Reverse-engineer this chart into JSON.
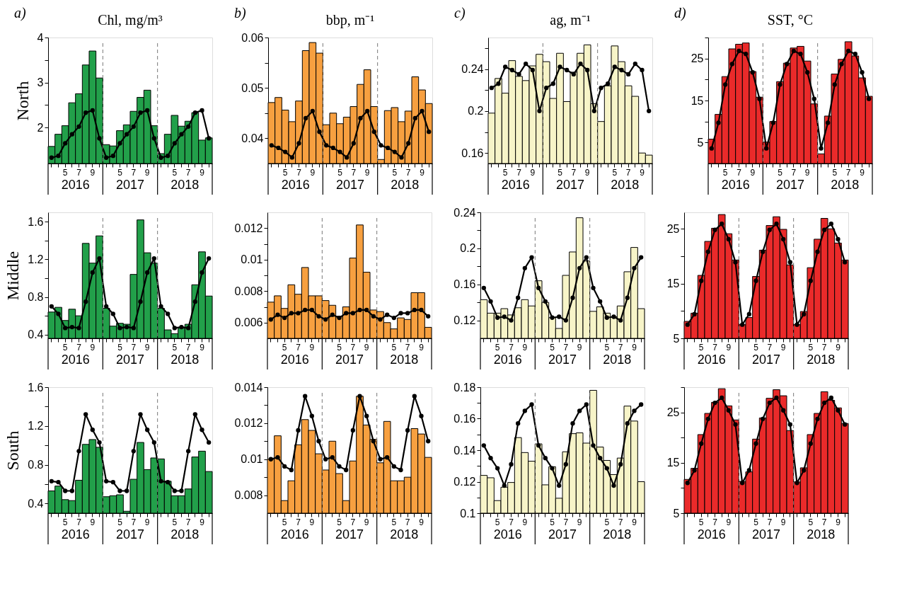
{
  "chart_data": [
    {
      "type": "bar",
      "title": "Chl, mg/m³",
      "subtitle": "a)",
      "ylabel": "North",
      "categories": [
        null,
        null,
        "5",
        null,
        "7",
        null,
        "9",
        null,
        null,
        null,
        "5",
        null,
        "7",
        null,
        "9",
        null,
        null,
        null,
        "5",
        null,
        "7",
        null,
        "9",
        null
      ],
      "ylim": [
        1.2,
        4
      ],
      "yticks": [
        2,
        {
          "value": 2.5,
          "label": null
        },
        3,
        {
          "value": 3.5,
          "label": null
        },
        4
      ],
      "annotations": [
        "2016",
        "2017",
        "2018"
      ],
      "series": [
        {
          "type": "bar",
          "color": "#22a04a",
          "values": [
            1.58,
            1.85,
            2.04,
            2.55,
            2.75,
            3.39,
            3.7,
            3.1,
            1.62,
            1.59,
            1.93,
            2.06,
            2.36,
            2.67,
            2.83,
            2.04,
            1.42,
            1.85,
            2.27,
            2.03,
            2.14,
            2.33,
            1.72,
            1.77
          ]
        },
        {
          "type": "line",
          "color": "#000000",
          "marker": "circle",
          "line_style": "solid",
          "values": [
            1.33,
            1.37,
            1.65,
            1.85,
            2.02,
            2.33,
            2.38,
            1.76,
            1.33,
            1.37,
            1.65,
            1.85,
            2.02,
            2.33,
            2.38,
            1.76,
            1.33,
            1.37,
            1.65,
            1.85,
            2.02,
            2.33,
            2.38,
            1.76
          ]
        }
      ]
    },
    {
      "type": "bar",
      "title": "bbp, m⁻¹",
      "subtitle": "b)",
      "categories": [
        null,
        null,
        "5",
        null,
        "7",
        null,
        "9",
        null,
        null,
        null,
        "5",
        null,
        "7",
        null,
        "9",
        null,
        null,
        null,
        "5",
        null,
        "7",
        null,
        "9",
        null
      ],
      "ylim": [
        0.035,
        0.06
      ],
      "yticks": [
        0.04,
        {
          "value": 0.045,
          "label": null
        },
        0.05,
        {
          "value": 0.055,
          "label": null
        },
        0.06
      ],
      "annotations": [
        "2016",
        "2017",
        "2018"
      ],
      "series": [
        {
          "type": "bar",
          "color": "#f7a040",
          "values": [
            0.0471,
            0.0481,
            0.0456,
            0.0433,
            0.0474,
            0.0574,
            0.059,
            0.0569,
            0.0427,
            0.045,
            0.0429,
            0.0442,
            0.0463,
            0.0507,
            0.0536,
            0.0463,
            0.0358,
            0.0455,
            0.0461,
            0.0433,
            0.0454,
            0.0522,
            0.0496,
            0.0469
          ]
        },
        {
          "type": "line",
          "color": "#000000",
          "marker": "circle",
          "line_style": "solid",
          "values": [
            0.0386,
            0.0381,
            0.0373,
            0.0362,
            0.039,
            0.044,
            0.0454,
            0.0413,
            0.0386,
            0.0381,
            0.0373,
            0.0362,
            0.039,
            0.044,
            0.0454,
            0.0413,
            0.0386,
            0.0381,
            0.0373,
            0.0362,
            0.039,
            0.044,
            0.0454,
            0.0413
          ]
        }
      ]
    },
    {
      "type": "bar",
      "title": "ag, m⁻¹",
      "subtitle": "c)",
      "categories": [
        null,
        null,
        "5",
        null,
        "7",
        null,
        "9",
        null,
        null,
        null,
        "5",
        null,
        "7",
        null,
        "9",
        null,
        null,
        null,
        "5",
        null,
        "7",
        null,
        "9",
        null
      ],
      "ylim": [
        0.15,
        0.27
      ],
      "yticks": [
        0.16,
        {
          "value": 0.18,
          "label": null
        },
        0.2,
        {
          "value": 0.22,
          "label": null
        },
        0.24,
        {
          "value": 0.26,
          "label": null
        }
      ],
      "annotations": [
        "2016",
        "2017",
        "2018"
      ],
      "series": [
        {
          "type": "bar",
          "color": "#f7f4c8",
          "values": [
            0.198,
            0.231,
            0.217,
            0.248,
            0.233,
            0.229,
            0.243,
            0.254,
            0.247,
            0.212,
            0.255,
            0.209,
            0.237,
            0.255,
            0.263,
            0.207,
            0.19,
            0.224,
            0.262,
            0.247,
            0.224,
            0.214,
            0.16,
            0.158
          ]
        },
        {
          "type": "line",
          "color": "#000000",
          "marker": "circle",
          "line_style": "solid",
          "values": [
            0.222,
            0.226,
            0.242,
            0.239,
            0.235,
            0.245,
            0.239,
            0.2,
            0.222,
            0.226,
            0.242,
            0.239,
            0.235,
            0.245,
            0.239,
            0.2,
            0.222,
            0.226,
            0.242,
            0.239,
            0.235,
            0.245,
            0.239,
            0.2
          ]
        }
      ]
    },
    {
      "type": "bar",
      "title": "SST, °C",
      "subtitle": "d)",
      "categories": [
        null,
        null,
        "5",
        null,
        "7",
        null,
        "9",
        null,
        null,
        null,
        "5",
        null,
        "7",
        null,
        "9",
        null,
        null,
        null,
        "5",
        null,
        "7",
        null,
        "9",
        null
      ],
      "ylim": [
        0,
        30
      ],
      "yticks": [
        5,
        {
          "value": 10,
          "label": null
        },
        15,
        {
          "value": 20,
          "label": null
        },
        25,
        {
          "value": 30,
          "label": null
        }
      ],
      "annotations": [
        "2016",
        "2017",
        "2018"
      ],
      "series": [
        {
          "type": "bar",
          "color": "#ea2a2a",
          "values": [
            5.8,
            11.7,
            20.7,
            27.3,
            28.4,
            28.7,
            21.9,
            15.8,
            5.1,
            10.0,
            19.5,
            23.9,
            27.5,
            27.9,
            24.4,
            14.2,
            2.3,
            11.3,
            21.3,
            24.8,
            29.0,
            25.6,
            20.4,
            16.0
          ]
        },
        {
          "type": "line",
          "color": "#000000",
          "marker": "circle",
          "line_style": "solid",
          "values": [
            3.6,
            9.7,
            18.8,
            23.7,
            26.8,
            26.1,
            21.7,
            15.4,
            3.6,
            9.7,
            18.8,
            23.7,
            26.8,
            26.1,
            21.7,
            15.4,
            3.6,
            9.7,
            18.8,
            23.7,
            26.8,
            26.1,
            21.7,
            15.4
          ]
        }
      ]
    },
    {
      "type": "bar",
      "ylabel": "Middle",
      "categories": [
        null,
        null,
        "5",
        null,
        "7",
        null,
        "9",
        null,
        null,
        null,
        "5",
        null,
        "7",
        null,
        "9",
        null,
        null,
        null,
        "5",
        null,
        "7",
        null,
        "9",
        null
      ],
      "ylim": [
        0.36,
        1.7
      ],
      "yticks": [
        0.4,
        {
          "value": 0.6,
          "label": null
        },
        0.8,
        {
          "value": 1.0,
          "label": null
        },
        1.2,
        {
          "value": 1.4,
          "label": null
        },
        1.6
      ],
      "annotations": [
        "2016",
        "2017",
        "2018"
      ],
      "series": [
        {
          "type": "bar",
          "color": "#22a04a",
          "values": [
            0.64,
            0.69,
            0.55,
            0.67,
            0.6,
            1.37,
            1.16,
            1.45,
            0.68,
            0.49,
            0.52,
            0.51,
            1.04,
            1.62,
            1.27,
            1.16,
            0.68,
            0.45,
            0.41,
            0.47,
            0.51,
            0.93,
            1.28,
            0.81
          ]
        },
        {
          "type": "line",
          "color": "#000000",
          "marker": "circle",
          "line_style": "solid",
          "values": [
            0.7,
            0.62,
            0.47,
            0.48,
            0.47,
            0.75,
            1.06,
            1.21,
            0.7,
            0.62,
            0.47,
            0.48,
            0.47,
            0.75,
            1.06,
            1.21,
            0.7,
            0.62,
            0.47,
            0.48,
            0.47,
            0.75,
            1.06,
            1.21
          ]
        }
      ]
    },
    {
      "type": "bar",
      "categories": [
        null,
        null,
        "5",
        null,
        "7",
        null,
        "9",
        null,
        null,
        null,
        "5",
        null,
        "7",
        null,
        "9",
        null,
        null,
        null,
        "5",
        null,
        "7",
        null,
        "9",
        null
      ],
      "ylim": [
        0.005,
        0.013
      ],
      "yticks": [
        0.006,
        {
          "value": 0.007,
          "label": null
        },
        0.008,
        {
          "value": 0.009,
          "label": null
        },
        0.01,
        {
          "value": 0.011,
          "label": null
        },
        0.012
      ],
      "annotations": [
        "2016",
        "2017",
        "2018"
      ],
      "series": [
        {
          "type": "bar",
          "color": "#f7a040",
          "values": [
            0.0073,
            0.0077,
            0.0069,
            0.0084,
            0.0078,
            0.0095,
            0.0077,
            0.0077,
            0.0074,
            0.0071,
            0.0064,
            0.007,
            0.0101,
            0.0122,
            0.0092,
            0.0068,
            0.0067,
            0.006,
            0.0056,
            0.0063,
            0.0062,
            0.0079,
            0.0079,
            0.0057
          ]
        },
        {
          "type": "line",
          "color": "#000000",
          "marker": "circle",
          "line_style": "solid",
          "values": [
            0.0062,
            0.0065,
            0.0063,
            0.0066,
            0.0066,
            0.0068,
            0.0068,
            0.0064,
            0.0062,
            0.0065,
            0.0063,
            0.0066,
            0.0066,
            0.0068,
            0.0068,
            0.0064,
            0.0062,
            0.0065,
            0.0063,
            0.0066,
            0.0066,
            0.0068,
            0.0068,
            0.0064
          ]
        }
      ]
    },
    {
      "type": "bar",
      "categories": [
        null,
        null,
        "5",
        null,
        "7",
        null,
        "9",
        null,
        null,
        null,
        "5",
        null,
        "7",
        null,
        "9",
        null,
        null,
        null,
        "5",
        null,
        "7",
        null,
        "9",
        null
      ],
      "ylim": [
        0.1,
        0.24
      ],
      "yticks": [
        0.12,
        {
          "value": 0.14,
          "label": null
        },
        0.16,
        {
          "value": 0.18,
          "label": null
        },
        0.2,
        {
          "value": 0.22,
          "label": null
        },
        0.24
      ],
      "annotations": [
        "2016",
        "2017",
        "2018"
      ],
      "series": [
        {
          "type": "bar",
          "color": "#f7f4c8",
          "values": [
            0.143,
            0.128,
            0.128,
            0.133,
            0.126,
            0.134,
            0.143,
            0.136,
            0.164,
            0.14,
            0.123,
            0.111,
            0.17,
            0.196,
            0.234,
            0.186,
            0.13,
            0.135,
            0.128,
            0.124,
            0.136,
            0.174,
            0.201,
            0.133
          ]
        },
        {
          "type": "line",
          "color": "#000000",
          "marker": "circle",
          "line_style": "solid",
          "values": [
            0.156,
            0.141,
            0.123,
            0.124,
            0.12,
            0.145,
            0.178,
            0.19,
            0.156,
            0.141,
            0.123,
            0.124,
            0.12,
            0.145,
            0.178,
            0.19,
            0.156,
            0.141,
            0.123,
            0.124,
            0.12,
            0.145,
            0.178,
            0.19
          ]
        }
      ]
    },
    {
      "type": "bar",
      "categories": [
        null,
        null,
        "5",
        null,
        "7",
        null,
        "9",
        null,
        null,
        null,
        "5",
        null,
        "7",
        null,
        "9",
        null,
        null,
        null,
        "5",
        null,
        "7",
        null,
        "9",
        null
      ],
      "ylim": [
        5,
        28
      ],
      "yticks": [
        5,
        {
          "value": 10,
          "label": null
        },
        15,
        {
          "value": 20,
          "label": null
        },
        25
      ],
      "annotations": [
        "2016",
        "2017",
        "2018"
      ],
      "series": [
        {
          "type": "bar",
          "color": "#ea2a2a",
          "values": [
            8.1,
            9.6,
            16.5,
            22.7,
            25.1,
            27.6,
            24.1,
            19.3,
            7.5,
            8.8,
            16.3,
            21.1,
            25.6,
            27.2,
            24.9,
            18.4,
            7.5,
            9.9,
            17.9,
            23.1,
            26.9,
            25.0,
            22.4,
            19.3
          ]
        },
        {
          "type": "line",
          "color": "#000000",
          "marker": "circle",
          "line_style": "solid",
          "values": [
            7.5,
            9.4,
            15.5,
            20.8,
            24.8,
            25.9,
            23.1,
            18.9,
            7.5,
            9.4,
            15.5,
            20.8,
            24.8,
            25.9,
            23.1,
            18.9,
            7.5,
            9.4,
            15.5,
            20.8,
            24.8,
            25.9,
            23.1,
            18.9
          ]
        }
      ]
    },
    {
      "type": "bar",
      "ylabel": "South",
      "categories": [
        null,
        null,
        "5",
        null,
        "7",
        null,
        "9",
        null,
        null,
        null,
        "5",
        null,
        "7",
        null,
        "9",
        null,
        null,
        null,
        "5",
        null,
        "7",
        null,
        "9",
        null
      ],
      "ylim": [
        0.3,
        1.6
      ],
      "yticks": [
        0.4,
        {
          "value": 0.6,
          "label": null
        },
        0.8,
        {
          "value": 1.0,
          "label": null
        },
        1.2,
        {
          "value": 1.4,
          "label": null
        },
        1.6
      ],
      "annotations": [
        "2016",
        "2017",
        "2018"
      ],
      "series": [
        {
          "type": "bar",
          "color": "#22a04a",
          "values": [
            0.53,
            0.58,
            0.44,
            0.43,
            0.64,
            1.01,
            1.06,
            0.98,
            0.47,
            0.48,
            0.49,
            0.32,
            0.65,
            1.03,
            0.75,
            0.87,
            0.86,
            0.63,
            0.48,
            0.48,
            0.55,
            0.88,
            0.94,
            0.73
          ]
        },
        {
          "type": "line",
          "color": "#000000",
          "marker": "circle",
          "line_style": "solid",
          "values": [
            0.63,
            0.62,
            0.53,
            0.53,
            0.94,
            1.32,
            1.16,
            1.03,
            0.63,
            0.62,
            0.53,
            0.53,
            0.94,
            1.32,
            1.16,
            1.03,
            0.63,
            0.62,
            0.53,
            0.53,
            0.94,
            1.32,
            1.16,
            1.03
          ]
        }
      ]
    },
    {
      "type": "bar",
      "categories": [
        null,
        null,
        "5",
        null,
        "7",
        null,
        "9",
        null,
        null,
        null,
        "5",
        null,
        "7",
        null,
        "9",
        null,
        null,
        null,
        "5",
        null,
        "7",
        null,
        "9",
        null
      ],
      "ylim": [
        0.007,
        0.014
      ],
      "yticks": [
        0.008,
        {
          "value": 0.009,
          "label": null
        },
        0.01,
        {
          "value": 0.011,
          "label": null
        },
        0.012,
        {
          "value": 0.013,
          "label": null
        },
        0.014
      ],
      "annotations": [
        "2016",
        "2017",
        "2018"
      ],
      "series": [
        {
          "type": "bar",
          "color": "#f7a040",
          "values": [
            0.01,
            0.0113,
            0.0077,
            0.0088,
            0.0108,
            0.0122,
            0.0116,
            0.0103,
            0.0094,
            0.011,
            0.0092,
            0.0077,
            0.0099,
            0.0135,
            0.0119,
            0.0111,
            0.0098,
            0.0121,
            0.0088,
            0.0088,
            0.009,
            0.0117,
            0.0114,
            0.0101
          ]
        },
        {
          "type": "line",
          "color": "#000000",
          "marker": "circle",
          "line_style": "solid",
          "values": [
            0.01,
            0.0101,
            0.0096,
            0.0094,
            0.0116,
            0.0135,
            0.0124,
            0.011,
            0.01,
            0.0101,
            0.0096,
            0.0094,
            0.0116,
            0.0135,
            0.0124,
            0.011,
            0.01,
            0.0101,
            0.0096,
            0.0094,
            0.0116,
            0.0135,
            0.0124,
            0.011
          ]
        }
      ]
    },
    {
      "type": "bar",
      "categories": [
        null,
        null,
        "5",
        null,
        "7",
        null,
        "9",
        null,
        null,
        null,
        "5",
        null,
        "7",
        null,
        "9",
        null,
        null,
        null,
        "5",
        null,
        "7",
        null,
        "9",
        null
      ],
      "ylim": [
        0.1,
        0.18
      ],
      "yticks": [
        0.1,
        {
          "value": 0.11,
          "label": null
        },
        0.12,
        {
          "value": 0.13,
          "label": null
        },
        0.14,
        {
          "value": 0.15,
          "label": null
        },
        0.16,
        {
          "value": 0.17,
          "label": null
        },
        0.18
      ],
      "annotations": [
        "2016",
        "2017",
        "2018"
      ],
      "series": [
        {
          "type": "bar",
          "color": "#f7f4c8",
          "values": [
            0.124,
            0.1225,
            0.108,
            0.1165,
            0.1195,
            0.148,
            0.1385,
            0.133,
            0.144,
            0.118,
            0.1295,
            0.1095,
            0.139,
            0.1505,
            0.151,
            0.1445,
            0.178,
            0.142,
            0.1335,
            0.1245,
            0.135,
            0.168,
            0.1585,
            0.12
          ]
        },
        {
          "type": "line",
          "color": "#000000",
          "marker": "circle",
          "line_style": "solid",
          "values": [
            0.143,
            0.135,
            0.1285,
            0.1175,
            0.131,
            0.157,
            0.165,
            0.169,
            0.143,
            0.135,
            0.1285,
            0.1175,
            0.131,
            0.157,
            0.165,
            0.169,
            0.143,
            0.135,
            0.1285,
            0.1175,
            0.131,
            0.157,
            0.165,
            0.169
          ]
        }
      ]
    },
    {
      "type": "bar",
      "categories": [
        null,
        null,
        "5",
        null,
        "7",
        null,
        "9",
        null,
        null,
        null,
        "5",
        null,
        "7",
        null,
        "9",
        null,
        null,
        null,
        "5",
        null,
        "7",
        null,
        "9",
        null
      ],
      "ylim": [
        5,
        30
      ],
      "yticks": [
        5,
        {
          "value": 10,
          "label": null
        },
        15,
        {
          "value": 20,
          "label": null
        },
        25,
        {
          "value": 30,
          "label": null
        }
      ],
      "annotations": [
        "2016",
        "2017",
        "2018"
      ],
      "series": [
        {
          "type": "bar",
          "color": "#ea2a2a",
          "values": [
            11.7,
            13.9,
            20.6,
            24.8,
            27.0,
            29.7,
            26.3,
            23.5,
            11.3,
            13.2,
            19.7,
            23.9,
            27.8,
            29.5,
            28.3,
            21.4,
            11.2,
            14.0,
            20.6,
            24.8,
            29.1,
            27.4,
            25.9,
            22.8
          ]
        },
        {
          "type": "line",
          "color": "#000000",
          "marker": "circle",
          "line_style": "solid",
          "values": [
            11.0,
            13.5,
            18.8,
            23.7,
            26.9,
            27.9,
            25.4,
            22.6,
            11.0,
            13.5,
            18.8,
            23.7,
            26.9,
            27.9,
            25.4,
            22.6,
            11.0,
            13.5,
            18.8,
            23.7,
            26.9,
            27.9,
            25.4,
            22.6
          ]
        }
      ]
    }
  ]
}
